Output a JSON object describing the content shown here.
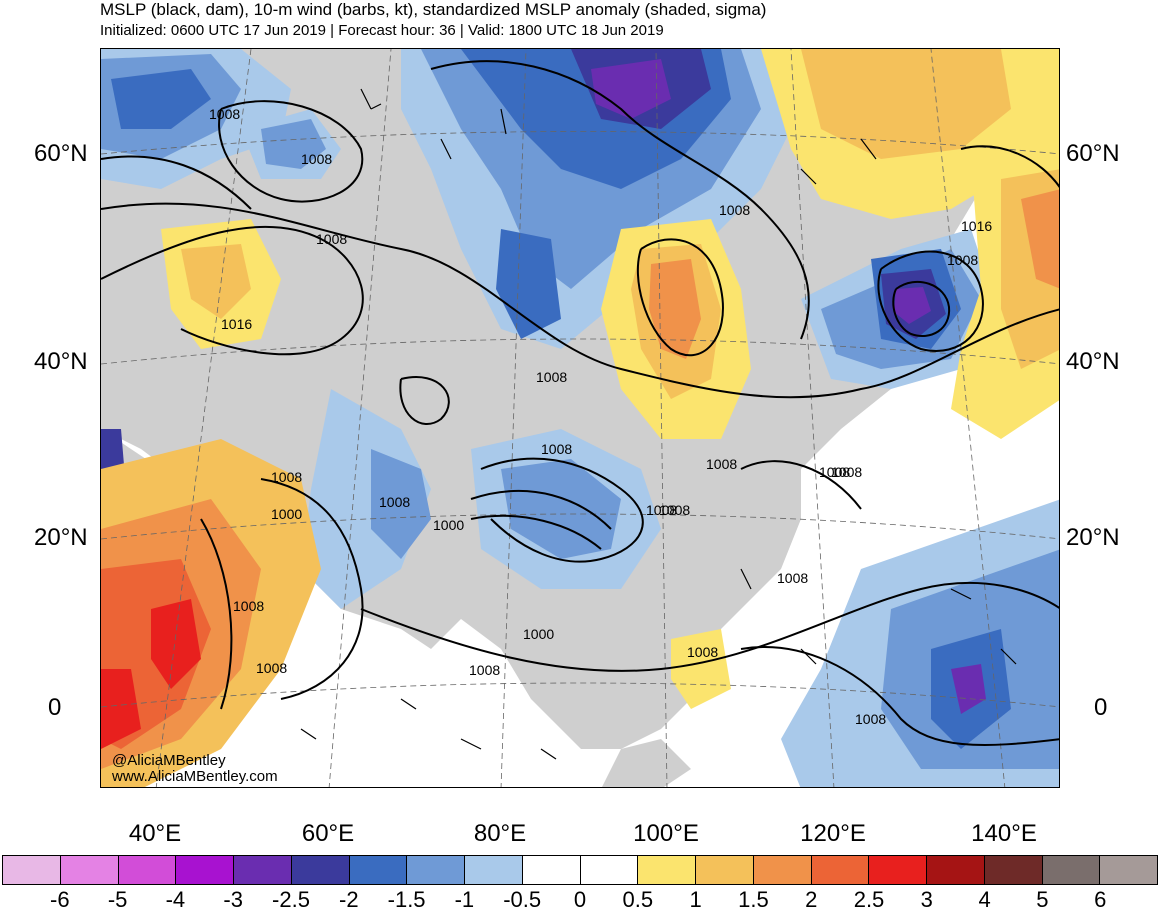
{
  "title": "MSLP (black, dam), 10-m wind (barbs, kt), standardized MSLP anomaly (shaded, sigma)",
  "subtitle": "Initialized: 0600 UTC 17 Jun 2019 | Forecast hour: 36 | Valid: 1800 UTC 18 Jun 2019",
  "lat_labels": [
    "60°N",
    "40°N",
    "20°N",
    "0"
  ],
  "lon_labels": [
    "40°E",
    "60°E",
    "80°E",
    "100°E",
    "120°E",
    "140°E"
  ],
  "isobar_labels": [
    "1008",
    "1008",
    "1008",
    "1016",
    "1008",
    "1008",
    "1008",
    "1008",
    "1016",
    "1008",
    "1008",
    "1008",
    "1000",
    "1008",
    "1008",
    "1008",
    "1000",
    "1008",
    "1008",
    "1008",
    "1008",
    "1008",
    "1008",
    "1000",
    "1008"
  ],
  "watermark": [
    "@AliciaMBentley",
    "www.AliciaMBentley.com"
  ],
  "colorbar": {
    "labels": [
      "-6",
      "-5",
      "-4",
      "-3",
      "-2.5",
      "-2",
      "-1.5",
      "-1",
      "-0.5",
      "0",
      "0.5",
      "1",
      "1.5",
      "2",
      "2.5",
      "3",
      "4",
      "5",
      "6"
    ],
    "colors": [
      "#e8b8e6",
      "#e482e4",
      "#d24dd8",
      "#a812d0",
      "#6a2db0",
      "#3b3a9c",
      "#3a6cc0",
      "#6f9ad6",
      "#a9c9ea",
      "#ffffff",
      "#ffffff",
      "#fbe46e",
      "#f4c15a",
      "#f0924a",
      "#ec6436",
      "#e8201e",
      "#a51414",
      "#6e2a28",
      "#7a6e6c",
      "#a59a98"
    ]
  },
  "palette": {
    "land": "#cfcfcf",
    "ocean": "#ffffff",
    "neg1": "#a9c9ea",
    "neg2": "#6f9ad6",
    "neg3": "#3a6cc0",
    "neg4": "#3b3a9c",
    "neg5": "#6a2db0",
    "neg6": "#a812d0",
    "pos1": "#fbe46e",
    "pos2": "#f4c15a",
    "pos3": "#f0924a",
    "pos4": "#ec6436",
    "pos5": "#e8201e"
  }
}
